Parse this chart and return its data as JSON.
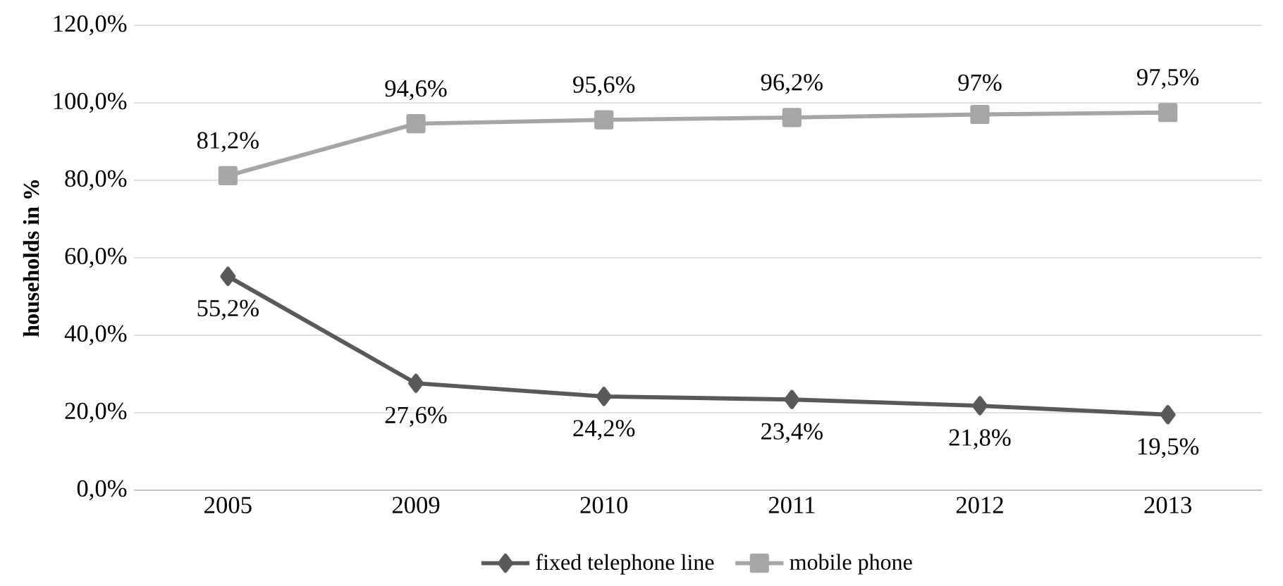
{
  "chart_data": {
    "type": "line",
    "ylabel": "households in %",
    "categories": [
      "2005",
      "2009",
      "2010",
      "2011",
      "2012",
      "2013"
    ],
    "series": [
      {
        "name": "fixed telephone line",
        "color": "#595959",
        "marker": "diamond",
        "values": [
          55.2,
          27.6,
          24.2,
          23.4,
          21.8,
          19.5
        ],
        "value_labels": [
          "55,2%",
          "27,6%",
          "24,2%",
          "23,4%",
          "21,8%",
          "19,5%"
        ]
      },
      {
        "name": "mobile phone",
        "color": "#a6a6a6",
        "marker": "square",
        "values": [
          81.2,
          94.6,
          95.6,
          96.2,
          97,
          97.5
        ],
        "value_labels": [
          "81,2%",
          "94,6%",
          "95,6%",
          "96,2%",
          "97%",
          "97,5%"
        ]
      }
    ],
    "ylim": [
      0,
      120
    ],
    "yticks": [
      {
        "value": 0,
        "label": "0,0%"
      },
      {
        "value": 20,
        "label": "20,0%"
      },
      {
        "value": 40,
        "label": "40,0%"
      },
      {
        "value": 60,
        "label": "60,0%"
      },
      {
        "value": 80,
        "label": "80,0%"
      },
      {
        "value": 100,
        "label": "100,0%"
      },
      {
        "value": 120,
        "label": "120,0%"
      }
    ],
    "grid": "y",
    "legend": "bottom",
    "line_style": "solid"
  }
}
